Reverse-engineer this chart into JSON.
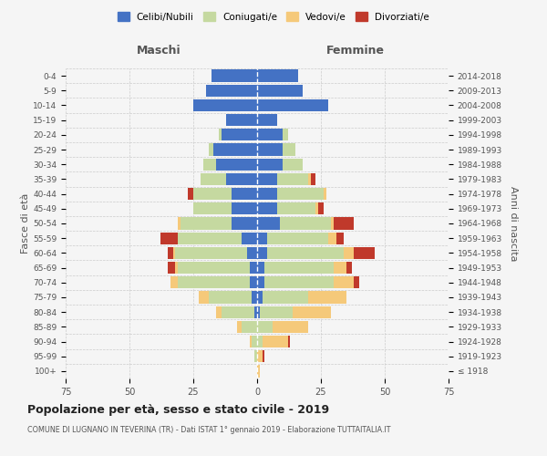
{
  "age_groups": [
    "100+",
    "95-99",
    "90-94",
    "85-89",
    "80-84",
    "75-79",
    "70-74",
    "65-69",
    "60-64",
    "55-59",
    "50-54",
    "45-49",
    "40-44",
    "35-39",
    "30-34",
    "25-29",
    "20-24",
    "15-19",
    "10-14",
    "5-9",
    "0-4"
  ],
  "birth_years": [
    "≤ 1918",
    "1919-1923",
    "1924-1928",
    "1929-1933",
    "1934-1938",
    "1939-1943",
    "1944-1948",
    "1949-1953",
    "1954-1958",
    "1959-1963",
    "1964-1968",
    "1969-1973",
    "1974-1978",
    "1979-1983",
    "1984-1988",
    "1989-1993",
    "1994-1998",
    "1999-2003",
    "2004-2008",
    "2009-2013",
    "2014-2018"
  ],
  "maschi": {
    "celibi": [
      0,
      0,
      0,
      0,
      1,
      2,
      3,
      3,
      4,
      6,
      10,
      10,
      10,
      12,
      16,
      17,
      14,
      12,
      25,
      20,
      18
    ],
    "coniugati": [
      0,
      1,
      2,
      6,
      13,
      17,
      28,
      28,
      28,
      25,
      20,
      15,
      15,
      10,
      5,
      2,
      1,
      0,
      0,
      0,
      0
    ],
    "vedovi": [
      0,
      0,
      1,
      2,
      2,
      4,
      3,
      1,
      1,
      0,
      1,
      0,
      0,
      0,
      0,
      0,
      0,
      0,
      0,
      0,
      0
    ],
    "divorziati": [
      0,
      0,
      0,
      0,
      0,
      0,
      0,
      3,
      2,
      7,
      0,
      0,
      2,
      0,
      0,
      0,
      0,
      0,
      0,
      0,
      0
    ]
  },
  "femmine": {
    "nubili": [
      0,
      0,
      0,
      0,
      1,
      2,
      3,
      3,
      4,
      4,
      9,
      8,
      8,
      8,
      10,
      10,
      10,
      8,
      28,
      18,
      16
    ],
    "coniugate": [
      0,
      0,
      2,
      6,
      13,
      18,
      27,
      27,
      30,
      24,
      20,
      15,
      18,
      12,
      8,
      5,
      2,
      0,
      0,
      0,
      0
    ],
    "vedove": [
      1,
      2,
      10,
      14,
      15,
      15,
      8,
      5,
      4,
      3,
      1,
      1,
      1,
      1,
      0,
      0,
      0,
      0,
      0,
      0,
      0
    ],
    "divorziate": [
      0,
      1,
      1,
      0,
      0,
      0,
      2,
      2,
      8,
      3,
      8,
      2,
      0,
      2,
      0,
      0,
      0,
      0,
      0,
      0,
      0
    ]
  },
  "colors": {
    "celibi": "#4472C4",
    "coniugati": "#C5D9A0",
    "vedovi": "#F5C97A",
    "divorziati": "#C0392B"
  },
  "xlim": 75,
  "title": "Popolazione per età, sesso e stato civile - 2019",
  "subtitle": "COMUNE DI LUGNANO IN TEVERINA (TR) - Dati ISTAT 1° gennaio 2019 - Elaborazione TUTTAITALIA.IT",
  "ylabel_left": "Fasce di età",
  "ylabel_right": "Anni di nascita",
  "xlabel_left": "Maschi",
  "xlabel_right": "Femmine",
  "legend_labels": [
    "Celibi/Nubili",
    "Coniugati/e",
    "Vedovi/e",
    "Divorziati/e"
  ],
  "bg_color": "#f5f5f5",
  "grid_color": "#cccccc"
}
